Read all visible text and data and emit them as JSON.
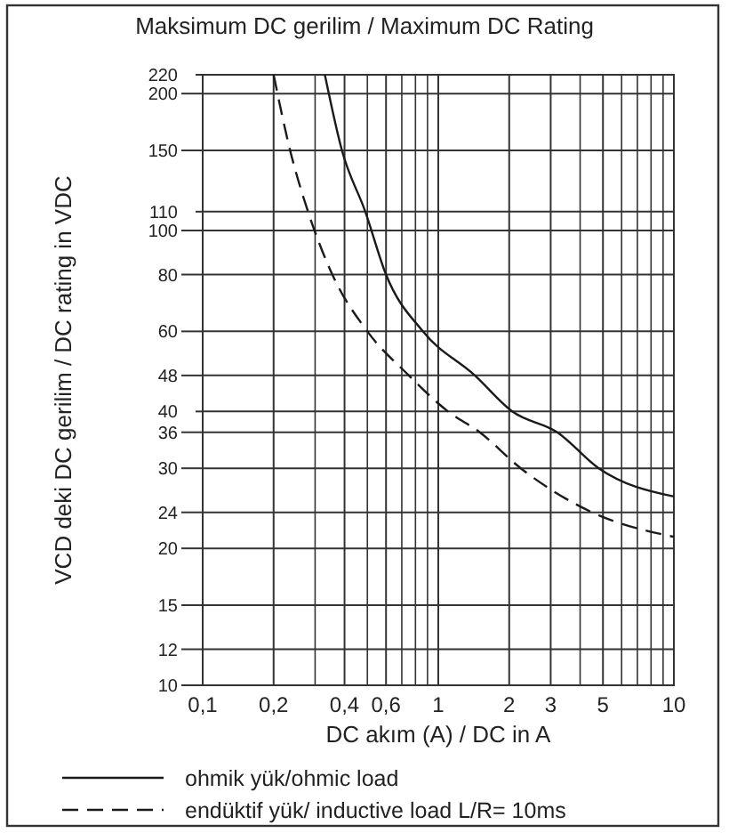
{
  "chart_data": {
    "type": "line",
    "title": "Maksimum DC gerilim / Maximum DC Rating",
    "xlabel": "DC akım (A) / DC in A",
    "ylabel": "VCD deki DC gerilim / DC rating in VDC",
    "log": "xy",
    "grid": true,
    "legend": "bottom",
    "marker": "none",
    "xlim": [
      0.1,
      10
    ],
    "ylim": [
      10,
      220
    ],
    "xticks": [
      {
        "value": 0.1,
        "label": "0,1"
      },
      {
        "value": 0.2,
        "label": "0,2"
      },
      {
        "value": 0.3,
        "label": null
      },
      {
        "value": 0.4,
        "label": "0,4"
      },
      {
        "value": 0.5,
        "label": null
      },
      {
        "value": 0.6,
        "label": "0,6"
      },
      {
        "value": 0.7,
        "label": null
      },
      {
        "value": 0.8,
        "label": null
      },
      {
        "value": 0.9,
        "label": null
      },
      1,
      2,
      3,
      {
        "value": 4,
        "label": null
      },
      5,
      {
        "value": 6,
        "label": null
      },
      {
        "value": 7,
        "label": null
      },
      {
        "value": 8,
        "label": null
      },
      {
        "value": 9,
        "label": null
      },
      10
    ],
    "yticks": [
      10,
      12,
      15,
      20,
      24,
      30,
      36,
      40,
      48,
      60,
      80,
      100,
      110,
      150,
      200,
      220
    ],
    "series": [
      {
        "name": "ohmik yük/ohmic load",
        "color": "#1a1a1a",
        "line_style": "solid",
        "x": [
          0.33,
          0.39,
          0.49,
          0.6,
          0.86,
          1.43,
          2.06,
          3.2,
          4.8,
          10
        ],
        "values": [
          220,
          150,
          110,
          80,
          60,
          48,
          40,
          36,
          30,
          26
        ]
      },
      {
        "name": "endüktif yük/ inductive load L/R= 10ms",
        "color": "#1a1a1a",
        "line_style": "dashed",
        "x": [
          0.2,
          0.235,
          0.28,
          0.355,
          0.5,
          0.75,
          1.1,
          1.5,
          2.24,
          4.5,
          10
        ],
        "values": [
          220,
          150,
          110,
          80,
          60,
          48,
          40,
          36,
          30,
          24,
          21.2
        ]
      }
    ]
  }
}
